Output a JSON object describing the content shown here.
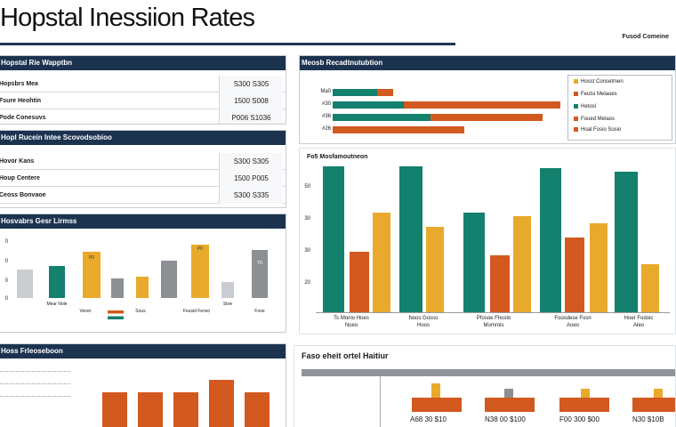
{
  "header": {
    "title": "Hopstal Inessiion Rates",
    "corner_label": "Fusod Comeine"
  },
  "panel1": {
    "title": "Hopstal Rie Wapptbn",
    "rows": [
      {
        "label": "Hopsbrs Mea",
        "value": "S300 S305"
      },
      {
        "label": "Fsure Heohtin",
        "value": "1500 S008"
      },
      {
        "label": "Pode Conesuvs",
        "value": "P006 S1036"
      }
    ]
  },
  "panel2": {
    "title": "Hopl Rucein Intee Scovodsobioo",
    "rows": [
      {
        "label": "Hovor Kans",
        "value": "S300 S305"
      },
      {
        "label": "Houp Centere",
        "value": "1500 P005"
      },
      {
        "label": "Ceoss Bonvaoe",
        "value": "S300 S335"
      }
    ]
  },
  "panel3": {
    "title": "Hosvabrs Gesr Lirmss",
    "ticks": [
      "0",
      "0",
      "0",
      "0"
    ],
    "bar_labels": [
      "P0",
      "T0"
    ],
    "foot_labels": [
      "Mear Nole",
      "Veoer",
      "Sous",
      "Feusid Fenso",
      "Stoe",
      "Fooe"
    ]
  },
  "panel4": {
    "title": "Hoss Frleoseboon"
  },
  "panel5": {
    "title": "Meosb Recadtnutubtion",
    "rows": [
      {
        "label": "Ma0"
      },
      {
        "label": "#30"
      },
      {
        "label": "#36"
      },
      {
        "label": "#26"
      }
    ],
    "legend": [
      "Hosst Consetmen",
      "Feutsi Melaoes",
      "Hetosl",
      "Foued Melaos",
      "Hoal Fosio Sosio"
    ]
  },
  "panel6": {
    "title": "Fo5 Mosfamoutneon",
    "ticks": [
      "50",
      "30",
      "30",
      "20"
    ],
    "groups": [
      {
        "label_top": "Ts Monio Hoes",
        "label_bot": "Noeo"
      },
      {
        "label_top": "Noos Gosso",
        "label_bot": "Hoos"
      },
      {
        "label_top": "Pfosoe Fhoslo",
        "label_bot": "Momrols"
      },
      {
        "label_top": "Foosdese Fosn",
        "label_bot": "Aoeo"
      },
      {
        "label_top": "Hoer Fodoic",
        "label_bot": "Aleo"
      }
    ]
  },
  "panel7": {
    "title": "Faso eheit ortel Haitiur",
    "labels": [
      "A68 30 $10",
      "N38 00 $100",
      "F00 300 $00",
      "N30 $10B"
    ]
  },
  "colors": {
    "teal": "#14806e",
    "rust": "#d2591f",
    "amber": "#e9a92c",
    "navy": "#1c3350"
  }
}
